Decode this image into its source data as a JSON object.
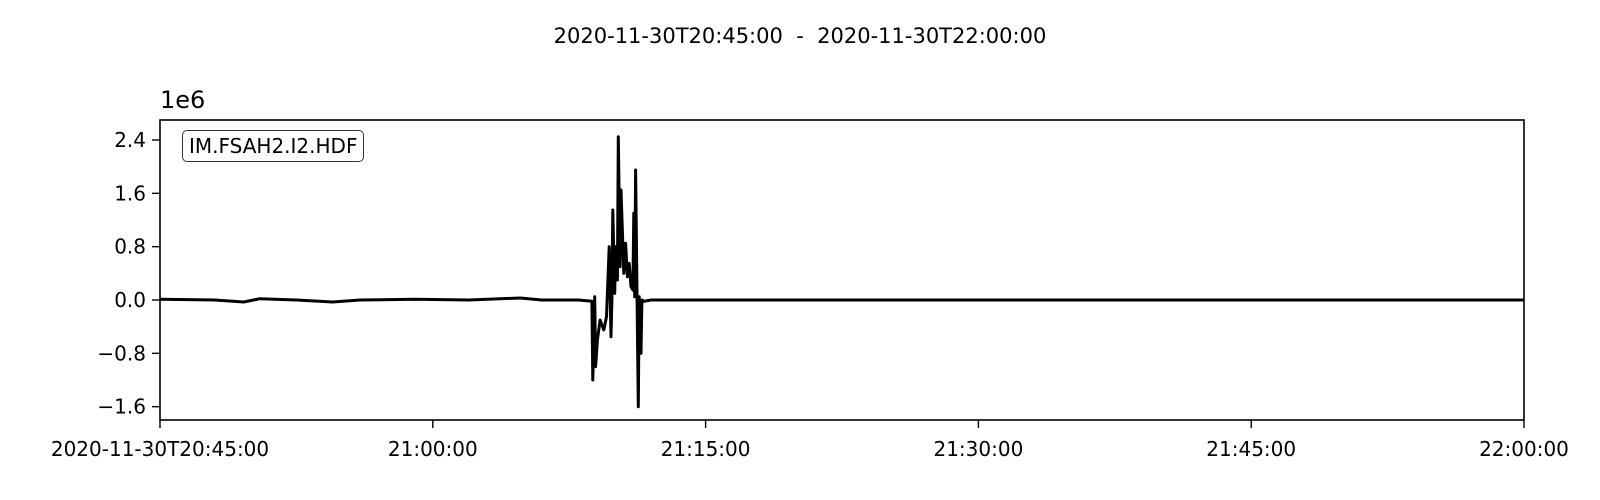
{
  "chart_data": {
    "type": "line",
    "title": "2020-11-30T20:45:00  -  2020-11-30T22:00:00",
    "xlabel": "",
    "ylabel": "",
    "y_offset_label": "1e6",
    "legend_label": "IM.FSAH2.I2.HDF",
    "legend_placement": "top-left",
    "grid": false,
    "x_range_minutes": [
      0,
      75
    ],
    "ylim": [
      -1.8,
      2.7
    ],
    "xticks": [
      {
        "minute": 0,
        "label": "2020-11-30T20:45:00"
      },
      {
        "minute": 15,
        "label": "21:00:00"
      },
      {
        "minute": 30,
        "label": "21:15:00"
      },
      {
        "minute": 45,
        "label": "21:30:00"
      },
      {
        "minute": 60,
        "label": "21:45:00"
      },
      {
        "minute": 75,
        "label": "22:00:00"
      }
    ],
    "yticks": [
      {
        "value": 2.4,
        "label": "2.4"
      },
      {
        "value": 1.6,
        "label": "1.6"
      },
      {
        "value": 0.8,
        "label": "0.8"
      },
      {
        "value": 0.0,
        "label": "0.0"
      },
      {
        "value": -0.8,
        "label": "−0.8"
      },
      {
        "value": -1.6,
        "label": "−1.6"
      }
    ],
    "series": [
      {
        "name": "IM.FSAH2.I2.HDF",
        "color": "#000000",
        "points": [
          [
            0.0,
            0.01
          ],
          [
            3.0,
            0.0
          ],
          [
            4.6,
            -0.03
          ],
          [
            5.5,
            0.02
          ],
          [
            7.5,
            0.0
          ],
          [
            9.5,
            -0.03
          ],
          [
            11.0,
            0.0
          ],
          [
            14.0,
            0.01
          ],
          [
            17.0,
            0.0
          ],
          [
            19.8,
            0.03
          ],
          [
            21.0,
            0.0
          ],
          [
            23.0,
            0.0
          ],
          [
            23.75,
            -0.02
          ],
          [
            23.8,
            -1.2
          ],
          [
            23.9,
            0.05
          ],
          [
            23.95,
            -1.0
          ],
          [
            24.05,
            -0.6
          ],
          [
            24.2,
            -0.3
          ],
          [
            24.4,
            -0.45
          ],
          [
            24.55,
            -0.25
          ],
          [
            24.7,
            0.8
          ],
          [
            24.8,
            -0.55
          ],
          [
            24.85,
            0.0
          ],
          [
            24.9,
            1.35
          ],
          [
            25.0,
            0.1
          ],
          [
            25.05,
            0.8
          ],
          [
            25.15,
            0.3
          ],
          [
            25.2,
            2.45
          ],
          [
            25.3,
            0.5
          ],
          [
            25.35,
            1.65
          ],
          [
            25.5,
            0.4
          ],
          [
            25.6,
            0.85
          ],
          [
            25.7,
            0.35
          ],
          [
            25.8,
            0.55
          ],
          [
            25.9,
            0.2
          ],
          [
            26.0,
            0.15
          ],
          [
            26.05,
            1.3
          ],
          [
            26.1,
            0.05
          ],
          [
            26.15,
            1.95
          ],
          [
            26.3,
            -1.6
          ],
          [
            26.35,
            0.05
          ],
          [
            26.45,
            -0.8
          ],
          [
            26.5,
            0.0
          ],
          [
            26.6,
            -0.02
          ],
          [
            27.0,
            0.0
          ],
          [
            75.0,
            0.0
          ]
        ]
      }
    ]
  }
}
